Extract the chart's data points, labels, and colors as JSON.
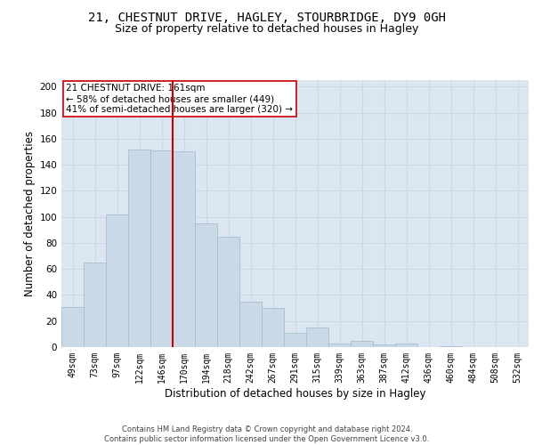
{
  "title_line1": "21, CHESTNUT DRIVE, HAGLEY, STOURBRIDGE, DY9 0GH",
  "title_line2": "Size of property relative to detached houses in Hagley",
  "xlabel": "Distribution of detached houses by size in Hagley",
  "ylabel": "Number of detached properties",
  "bar_labels": [
    "49sqm",
    "73sqm",
    "97sqm",
    "122sqm",
    "146sqm",
    "170sqm",
    "194sqm",
    "218sqm",
    "242sqm",
    "267sqm",
    "291sqm",
    "315sqm",
    "339sqm",
    "363sqm",
    "387sqm",
    "412sqm",
    "436sqm",
    "460sqm",
    "484sqm",
    "508sqm",
    "532sqm"
  ],
  "bar_values": [
    31,
    65,
    102,
    152,
    151,
    150,
    95,
    85,
    35,
    30,
    11,
    15,
    3,
    5,
    2,
    3,
    0,
    1,
    0,
    0,
    0
  ],
  "bar_color": "#c9d9e8",
  "bar_edge_color": "#a8bfd0",
  "vline_color": "#cc0000",
  "annotation_text": "21 CHESTNUT DRIVE: 161sqm\n← 58% of detached houses are smaller (449)\n41% of semi-detached houses are larger (320) →",
  "annotation_box_color": "#ffffff",
  "annotation_box_edge_color": "#cc0000",
  "ylim": [
    0,
    205
  ],
  "yticks": [
    0,
    20,
    40,
    60,
    80,
    100,
    120,
    140,
    160,
    180,
    200
  ],
  "grid_color": "#ccd6e8",
  "bg_color": "#dce6f0",
  "footer_text": "Contains HM Land Registry data © Crown copyright and database right 2024.\nContains public sector information licensed under the Open Government Licence v3.0.",
  "title_fontsize": 10,
  "subtitle_fontsize": 9,
  "axis_label_fontsize": 8.5,
  "tick_fontsize": 7,
  "annotation_fontsize": 7.5,
  "footer_fontsize": 6
}
